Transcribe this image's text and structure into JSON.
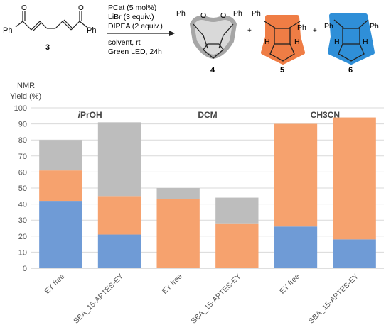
{
  "scheme": {
    "reactant_label": "3",
    "reactant_groups": [
      "Ph",
      "Ph"
    ],
    "conditions": [
      "PCat (5 mol%)",
      "LiBr (3 equiv.)",
      "DIPEA (2 equiv.)"
    ],
    "conditions_below": [
      "solvent, rt",
      "Green LED, 24h"
    ],
    "product_labels": [
      "4",
      "5",
      "6"
    ],
    "product_groups": {
      "p4": [
        "Ph",
        "O",
        "O",
        "Ph"
      ],
      "p5": [
        "Ph",
        "Ph",
        "H",
        "H"
      ],
      "p6": [
        "Ph",
        "Ph",
        "H",
        "H"
      ]
    },
    "plus": "+",
    "colors": {
      "p4": "#a6a6a6",
      "p5": "#ef7d45",
      "p6": "#2f8fd8"
    }
  },
  "chart_data": {
    "type": "bar",
    "stacked": true,
    "ylabel": "NMR Yield (%)",
    "ylabel_lines": [
      "NMR",
      "Yield (%)"
    ],
    "ylim": [
      0,
      100
    ],
    "yticks": [
      0,
      10,
      20,
      30,
      40,
      50,
      60,
      70,
      80,
      90,
      100
    ],
    "grid": true,
    "groups": [
      {
        "label_prefix": "i",
        "label_rest": "PrOH"
      },
      {
        "label_prefix": "",
        "label_rest": "DCM"
      },
      {
        "label_prefix": "",
        "label_rest": "CH3CN"
      }
    ],
    "categories": [
      "EY free",
      "SBA_15-APTES-EY",
      "EY free",
      "SBA_15-APTES-EY",
      "EY free",
      "SBA_15-APTES-EY"
    ],
    "series": [
      {
        "color": "#6f9bd6",
        "values": [
          42,
          21,
          0,
          0,
          26,
          18
        ]
      },
      {
        "color": "#f6a26e",
        "values": [
          19,
          24,
          43,
          28,
          64,
          76
        ]
      },
      {
        "color": "#bdbdbd",
        "values": [
          19,
          46,
          7,
          16,
          0,
          0
        ]
      }
    ]
  }
}
